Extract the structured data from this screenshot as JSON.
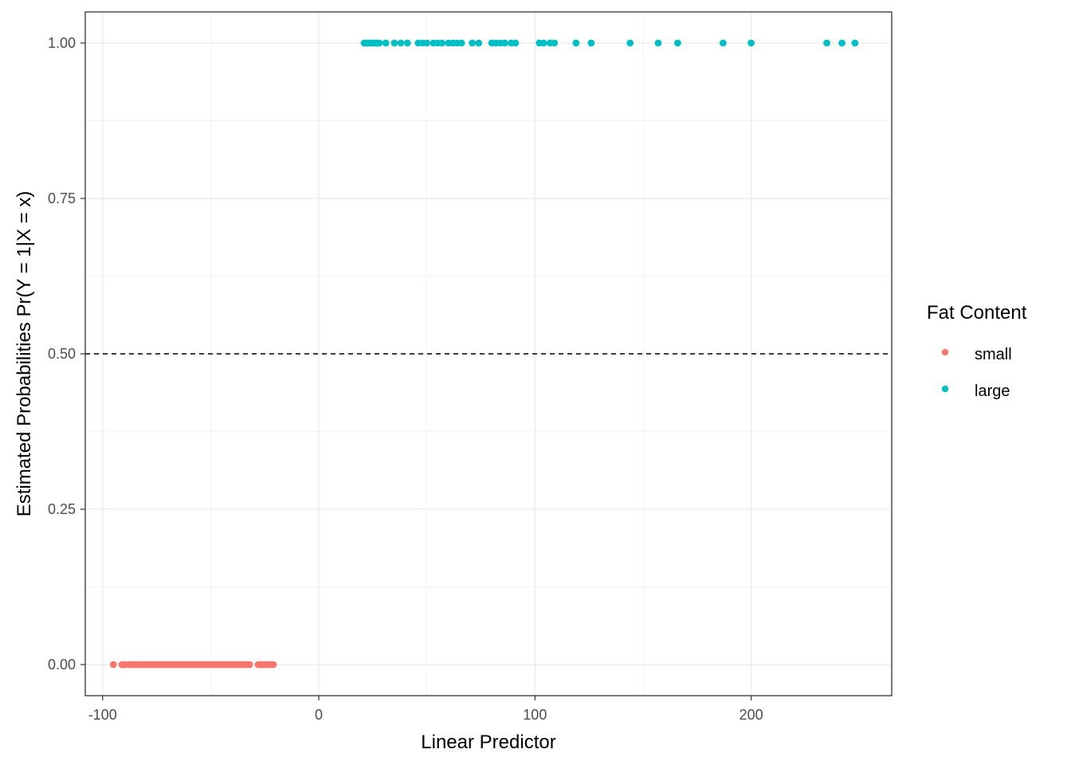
{
  "chart_data": {
    "type": "scatter",
    "xlabel": "Linear Predictor",
    "ylabel": "Estimated Probabilities Pr(Y = 1|X = x)",
    "xlim": [
      -108,
      265
    ],
    "ylim": [
      -0.05,
      1.05
    ],
    "x_ticks": [
      -100,
      0,
      100,
      200
    ],
    "x_tick_labels": [
      "-100",
      "0",
      "100",
      "200"
    ],
    "y_ticks": [
      0,
      0.25,
      0.5,
      0.75,
      1
    ],
    "y_tick_labels": [
      "0.00",
      "0.25",
      "0.50",
      "0.75",
      "1.00"
    ],
    "grid": true,
    "reference_line": {
      "y": 0.5,
      "style": "dashed"
    },
    "legend": {
      "title": "Fat Content",
      "position": "right"
    },
    "series": [
      {
        "name": "small",
        "color": "#F8766D",
        "y": 0,
        "x": [
          -95,
          -91,
          -90,
          -88,
          -87,
          -86,
          -85,
          -84,
          -83,
          -82,
          -81,
          -80,
          -79,
          -78,
          -77,
          -76,
          -75,
          -74,
          -73,
          -72,
          -71,
          -70,
          -69,
          -68,
          -67,
          -66,
          -65,
          -64,
          -63,
          -62,
          -61,
          -60,
          -59,
          -58,
          -57,
          -56,
          -55,
          -54,
          -53,
          -52,
          -51,
          -50,
          -49,
          -48,
          -47,
          -46,
          -45,
          -44,
          -43,
          -42,
          -41,
          -40,
          -39,
          -38,
          -37,
          -36,
          -35,
          -34,
          -33,
          -32,
          -28,
          -27,
          -26,
          -25,
          -24,
          -23,
          -22,
          -21
        ]
      },
      {
        "name": "large",
        "color": "#00BFC4",
        "y": 1,
        "x": [
          21,
          22,
          23,
          24,
          25,
          26,
          27,
          28,
          31,
          35,
          38,
          41,
          46,
          48,
          50,
          53,
          55,
          57,
          60,
          62,
          64,
          66,
          71,
          74,
          80,
          82,
          84,
          86,
          89,
          91,
          102,
          104,
          107,
          109,
          119,
          126,
          144,
          157,
          166,
          187,
          200,
          235,
          242,
          248
        ]
      }
    ]
  }
}
